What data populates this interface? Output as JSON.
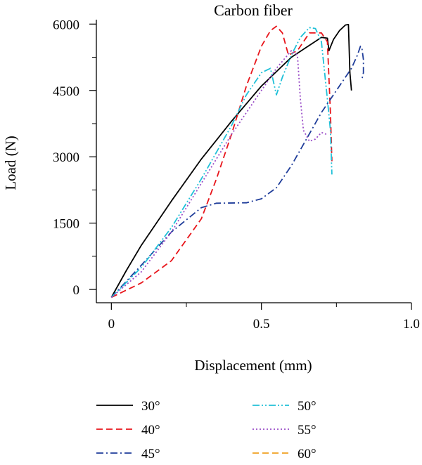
{
  "chart_data": {
    "type": "line",
    "title": "Carbon fiber",
    "xlabel": "Displacement (mm)",
    "ylabel": "Load (N)",
    "xlim": [
      -0.05,
      1.0
    ],
    "ylim": [
      -300,
      6100
    ],
    "xticks": [
      {
        "value": 0,
        "label": "0"
      },
      {
        "value": 0.5,
        "label": "0.5"
      },
      {
        "value": 1.0,
        "label": "1.0"
      }
    ],
    "yticks": [
      {
        "value": 0,
        "label": "0"
      },
      {
        "value": 1500,
        "label": "1500"
      },
      {
        "value": 3000,
        "label": "3000"
      },
      {
        "value": 4500,
        "label": "4500"
      },
      {
        "value": 6000,
        "label": "6000"
      }
    ],
    "legend_position": "bottom",
    "grid": false,
    "series": [
      {
        "name": "30°",
        "color": "#000000",
        "dash": "solid",
        "x": [
          0,
          0.05,
          0.1,
          0.2,
          0.3,
          0.4,
          0.5,
          0.6,
          0.7,
          0.72,
          0.725,
          0.74,
          0.76,
          0.78,
          0.79,
          0.795,
          0.8
        ],
        "y": [
          -180,
          430,
          1000,
          2000,
          2950,
          3800,
          4600,
          5250,
          5700,
          5680,
          5400,
          5650,
          5850,
          5980,
          5990,
          4900,
          4500
        ]
      },
      {
        "name": "40°",
        "color": "#e8151b",
        "dash": "dashed",
        "x": [
          0,
          0.1,
          0.2,
          0.3,
          0.35,
          0.4,
          0.45,
          0.5,
          0.53,
          0.55,
          0.57,
          0.59,
          0.62,
          0.66,
          0.7,
          0.72,
          0.73,
          0.735
        ],
        "y": [
          -180,
          150,
          650,
          1600,
          2500,
          3500,
          4600,
          5500,
          5850,
          5950,
          5800,
          5300,
          5400,
          5800,
          5800,
          5600,
          4000,
          2900
        ]
      },
      {
        "name": "45°",
        "color": "#1f3d9a",
        "dash": "dashdot",
        "x": [
          0,
          0.1,
          0.2,
          0.3,
          0.35,
          0.45,
          0.5,
          0.55,
          0.6,
          0.65,
          0.7,
          0.75,
          0.8,
          0.82,
          0.83,
          0.835,
          0.84,
          0.84,
          0.835
        ],
        "y": [
          -180,
          550,
          1300,
          1850,
          1950,
          1960,
          2050,
          2300,
          2800,
          3400,
          4000,
          4500,
          5000,
          5300,
          5500,
          5450,
          5200,
          4900,
          4750
        ]
      },
      {
        "name": "50°",
        "color": "#20c0d8",
        "dash": "dashdotdot",
        "x": [
          0,
          0.1,
          0.2,
          0.3,
          0.4,
          0.45,
          0.5,
          0.53,
          0.55,
          0.57,
          0.6,
          0.63,
          0.66,
          0.68,
          0.7,
          0.72,
          0.73,
          0.735
        ],
        "y": [
          -180,
          500,
          1400,
          2500,
          3700,
          4400,
          4900,
          5000,
          4400,
          4800,
          5300,
          5700,
          5920,
          5900,
          5600,
          4300,
          3600,
          2600
        ]
      },
      {
        "name": "55°",
        "color": "#9a4cc8",
        "dash": "dotted",
        "x": [
          0,
          0.1,
          0.2,
          0.3,
          0.4,
          0.5,
          0.55,
          0.6,
          0.62,
          0.63,
          0.64,
          0.66,
          0.68,
          0.7,
          0.72
        ],
        "y": [
          -180,
          400,
          1300,
          2400,
          3500,
          4500,
          5000,
          5400,
          5300,
          4300,
          3600,
          3350,
          3400,
          3550,
          3500
        ]
      },
      {
        "name": "60°",
        "color": "#f0a020",
        "dash": "dashed",
        "x": [],
        "y": []
      }
    ]
  }
}
